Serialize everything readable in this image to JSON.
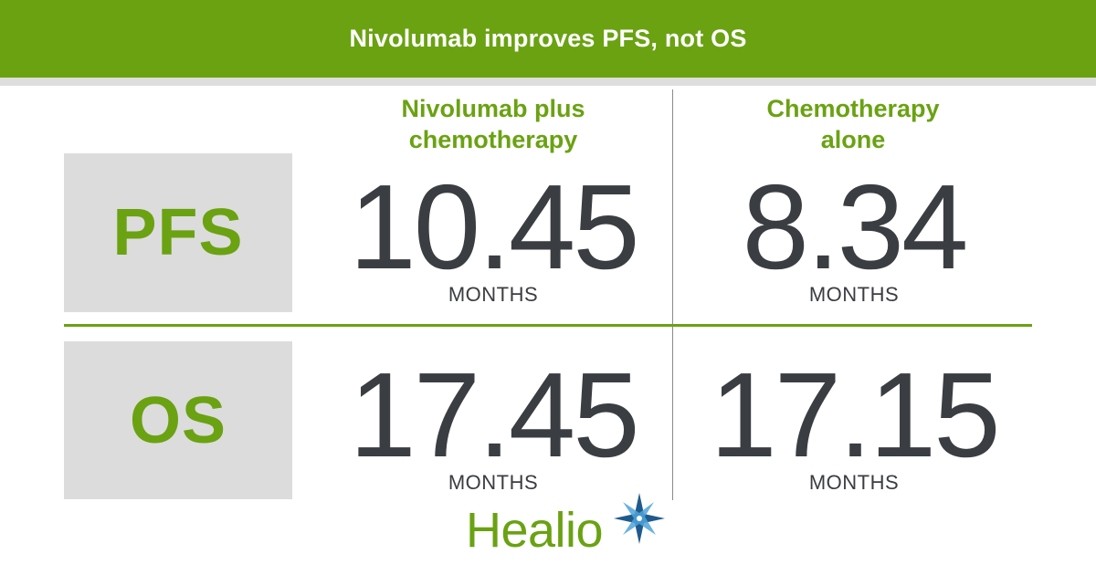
{
  "title": "Nivolumab improves PFS, not OS",
  "columns": [
    {
      "line1": "Nivolumab plus",
      "line2": "chemotherapy"
    },
    {
      "line1": "Chemotherapy",
      "line2": "alone"
    }
  ],
  "rows": [
    {
      "label": "PFS",
      "cells": [
        {
          "value": "10.45",
          "unit": "MONTHS"
        },
        {
          "value": "8.34",
          "unit": "MONTHS"
        }
      ]
    },
    {
      "label": "OS",
      "cells": [
        {
          "value": "17.45",
          "unit": "MONTHS"
        },
        {
          "value": "17.15",
          "unit": "MONTHS"
        }
      ]
    }
  ],
  "logo": {
    "text": "Healio",
    "icon": "star-icon"
  },
  "colors": {
    "accent": "#6aa212",
    "value_text": "#3a3d41",
    "label_box": "#dcdcdc",
    "logo_star_dark": "#1f5a8c",
    "logo_star_light": "#4fa3d9"
  }
}
